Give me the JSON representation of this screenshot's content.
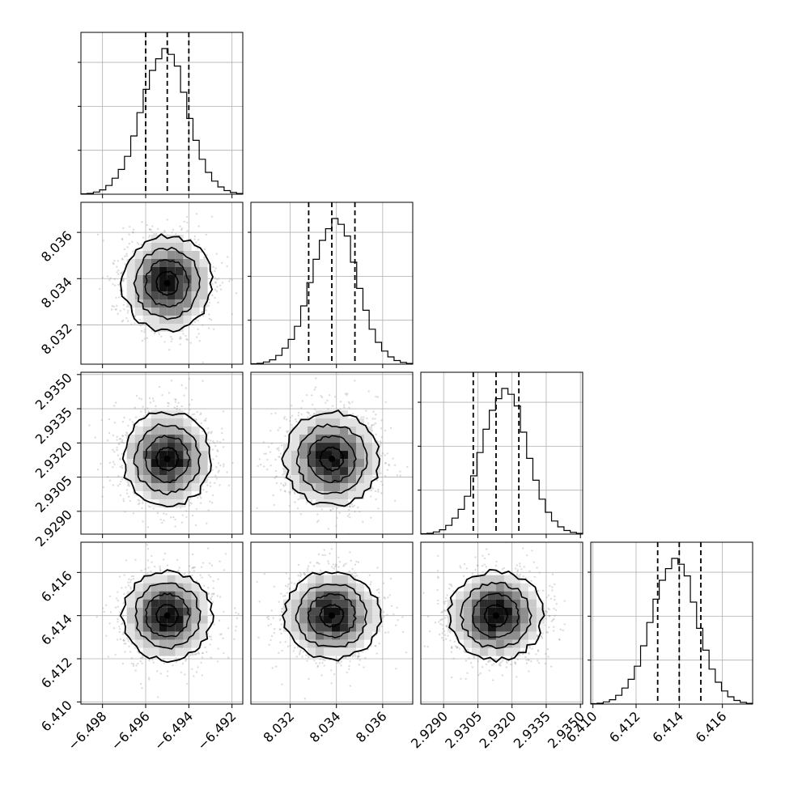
{
  "chart_data": {
    "type": "corner",
    "parameters": [
      {
        "median": -6.495,
        "q16": -6.496,
        "q84": -6.494,
        "range": [
          -6.499,
          -6.4915
        ],
        "ticks": [
          "−6.498",
          "−6.496",
          "−6.494",
          "−6.492"
        ],
        "tick_values": [
          -6.498,
          -6.496,
          -6.494,
          -6.492
        ],
        "hist_counts": [
          0.3,
          0.6,
          1.5,
          3,
          6,
          11,
          17,
          26,
          40,
          56,
          72,
          85,
          93,
          100,
          96,
          88,
          70,
          52,
          37,
          24,
          15,
          9,
          5,
          2.5,
          1.2,
          0.5
        ]
      },
      {
        "median": 8.0338,
        "q16": 8.0328,
        "q84": 8.0348,
        "range": [
          8.0303,
          8.0373
        ],
        "ticks": [
          "8.032",
          "8.034",
          "8.036"
        ],
        "tick_values": [
          8.032,
          8.034,
          8.036
        ],
        "hist_counts": [
          0.3,
          0.6,
          1.5,
          3,
          6,
          11,
          17,
          26,
          40,
          56,
          72,
          85,
          93,
          100,
          96,
          88,
          70,
          52,
          37,
          24,
          15,
          9,
          5,
          2.5,
          1.2,
          0.5
        ]
      },
      {
        "median": 2.9313,
        "q16": 2.9303,
        "q84": 2.9323,
        "range": [
          2.928,
          2.9351
        ],
        "ticks": [
          "2.9290",
          "2.9305",
          "2.9320",
          "2.9335",
          "2.9350"
        ],
        "tick_values": [
          2.929,
          2.9305,
          2.932,
          2.9335,
          2.935
        ],
        "hist_counts": [
          0.3,
          0.6,
          1.5,
          3,
          6,
          11,
          17,
          26,
          40,
          56,
          72,
          85,
          93,
          100,
          96,
          88,
          70,
          52,
          37,
          24,
          15,
          9,
          5,
          2.5,
          1.2,
          0.5
        ]
      },
      {
        "median": 6.414,
        "q16": 6.413,
        "q84": 6.415,
        "range": [
          6.4099,
          6.4174
        ],
        "ticks": [
          "6.410",
          "6.412",
          "6.414",
          "6.416"
        ],
        "tick_values": [
          6.41,
          6.412,
          6.414,
          6.416
        ],
        "hist_counts": [
          0.3,
          0.6,
          1.5,
          3,
          6,
          11,
          17,
          26,
          40,
          56,
          72,
          85,
          93,
          100,
          96,
          88,
          70,
          52,
          37,
          24,
          15,
          9,
          5,
          2.5,
          1.2,
          0.5
        ]
      }
    ],
    "quantile_lines": "dashed",
    "grid": true
  }
}
